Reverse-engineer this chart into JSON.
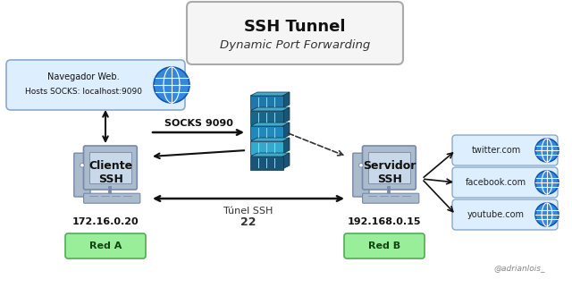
{
  "title_line1": "SSH Tunnel",
  "title_line2": "Dynamic Port Forwarding",
  "bg_color": "#ffffff",
  "fig_bg": "#ffffff",
  "client_label": "Cliente\nSSH",
  "client_ip": "172.16.0.20",
  "server_label": "Servidor\nSSH",
  "server_ip": "192.168.0.15",
  "tunnel_label": "Túnel SSH",
  "tunnel_label2": "22",
  "socks_label": "SOCKS 9090",
  "red_a_label": "Red A",
  "red_b_label": "Red B",
  "browser_line1": "Navegador Web.",
  "browser_line2": "Hosts SOCKS: localhost:9090",
  "websites": [
    "twitter.com",
    "facebook.com",
    "youtube.com"
  ],
  "credit": "@adrianlois_",
  "title_box_color": "#f5f5f5",
  "title_box_edge": "#aaaaaa",
  "browser_box_color": "#ddeeff",
  "browser_box_edge": "#88aacc",
  "red_box_color": "#99ee99",
  "red_box_edge": "#55aa55",
  "web_box_color": "#ddeeff",
  "web_box_edge": "#88aacc",
  "arrow_color": "#111111",
  "dashed_arrow_color": "#333333",
  "computer_body_color": "#aabbcc",
  "computer_dark": "#7788aa",
  "computer_screen_color": "#ddeeff",
  "firewall_colors": [
    "#2277aa",
    "#1a6688",
    "#2288bb",
    "#33aacc",
    "#1a5577"
  ],
  "globe_fill": "#3388dd",
  "globe_edge": "#1155bb"
}
